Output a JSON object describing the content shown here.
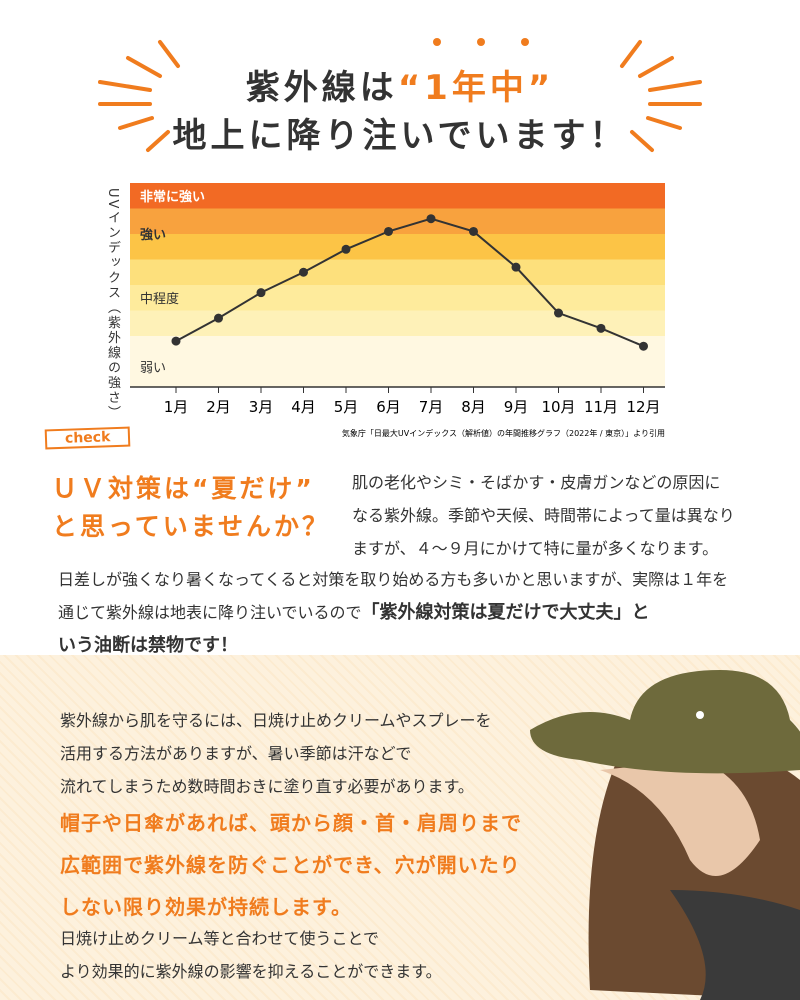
{
  "header": {
    "title_prefix": "紫外線は",
    "title_emphasis": "“1年中”",
    "title_line2": "地上に降り注いでいます！"
  },
  "chart_data": {
    "type": "line",
    "y_label": "UVインデックス（紫外線の強さ）",
    "categories": [
      "1月",
      "2月",
      "3月",
      "4月",
      "5月",
      "6月",
      "7月",
      "8月",
      "9月",
      "10月",
      "11月",
      "12月"
    ],
    "values": [
      1.8,
      2.7,
      3.7,
      4.5,
      5.4,
      6.1,
      6.6,
      6.1,
      4.7,
      2.9,
      2.3,
      1.6
    ],
    "color": "#333333",
    "ylim": [
      0,
      8
    ],
    "bands": [
      {
        "label": "非常に強い",
        "range": [
          7,
          8
        ],
        "colors": [
          "#f26a24"
        ]
      },
      {
        "label": "強い",
        "range": [
          5,
          7
        ],
        "colors": [
          "#fcc446",
          "#f8a23e"
        ]
      },
      {
        "label": "中程度",
        "range": [
          2,
          5
        ],
        "colors": [
          "#fef1b8",
          "#feeb9c",
          "#fde07c"
        ]
      },
      {
        "label": "弱い",
        "range": [
          0,
          2
        ],
        "colors": [
          "#fff8e1"
        ]
      }
    ],
    "source": "気象庁「日最大UVインデックス（解析値）の年間推移グラフ（2022年 / 東京）」より引用"
  },
  "check": {
    "tag": "check",
    "heading_lines": [
      "ＵＶ対策は“夏だけ”",
      "と思っていませんか？"
    ],
    "intro_lines": [
      "肌の老化やシミ・そばかす・皮膚ガンなどの原因に",
      "なる紫外線。季節や天候、時間帯によって量は異なり",
      "ますが、４〜９月にかけて特に量が多くなります。"
    ],
    "body_lines": [
      [
        {
          "text": "日差しが強くなり暑くなってくると対策を取り始める方も多いかと思いますが、実際は１年を",
          "bold": false
        }
      ],
      [
        {
          "text": "通じて紫外線は地表に降り注いでいるので",
          "bold": false
        },
        {
          "text": "「紫外線対策は夏だけで大丈夫」と",
          "bold": true
        }
      ],
      [
        {
          "text": "いう油断は禁物です！",
          "bold": true
        }
      ]
    ]
  },
  "protect": {
    "lines": [
      "紫外線から肌を守るには、日焼け止めクリームやスプレーを",
      "活用する方法がありますが、暑い季節は汗などで",
      "流れてしまうため数時間おきに塗り直す必要があります。"
    ],
    "emphasis_lines": [
      "帽子や日傘があれば、頭から顔・首・肩周りまで",
      "広範囲で紫外線を防ぐことができ、穴が開いたり",
      "しない限り効果が持続します。"
    ],
    "closing_lines": [
      "日焼け止めクリーム等と合わせて使うことで",
      "より効果的に紫外線の影響を抑えることができます。"
    ]
  }
}
